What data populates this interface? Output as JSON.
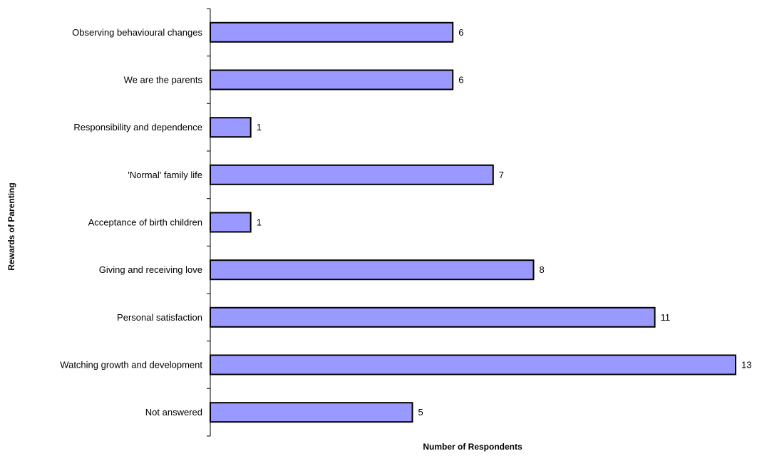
{
  "chart_data": {
    "type": "bar",
    "orientation": "horizontal",
    "title": "",
    "xlabel": "Number of Respondents",
    "ylabel": "Rewards of Parenting",
    "categories": [
      "Observing behavioural changes",
      "We are the parents",
      "Responsibility and dependence",
      "'Normal' family life",
      "Acceptance of birth children",
      "Giving and receiving love",
      "Personal satisfaction",
      "Watching growth and development",
      "Not answered"
    ],
    "values": [
      6,
      6,
      1,
      7,
      1,
      8,
      11,
      13,
      5
    ],
    "xlim": [
      0,
      13
    ],
    "grid": false,
    "legend": "none",
    "data_labels": true,
    "bar_color": "#9999ff",
    "bar_edge_color": "#000000"
  }
}
